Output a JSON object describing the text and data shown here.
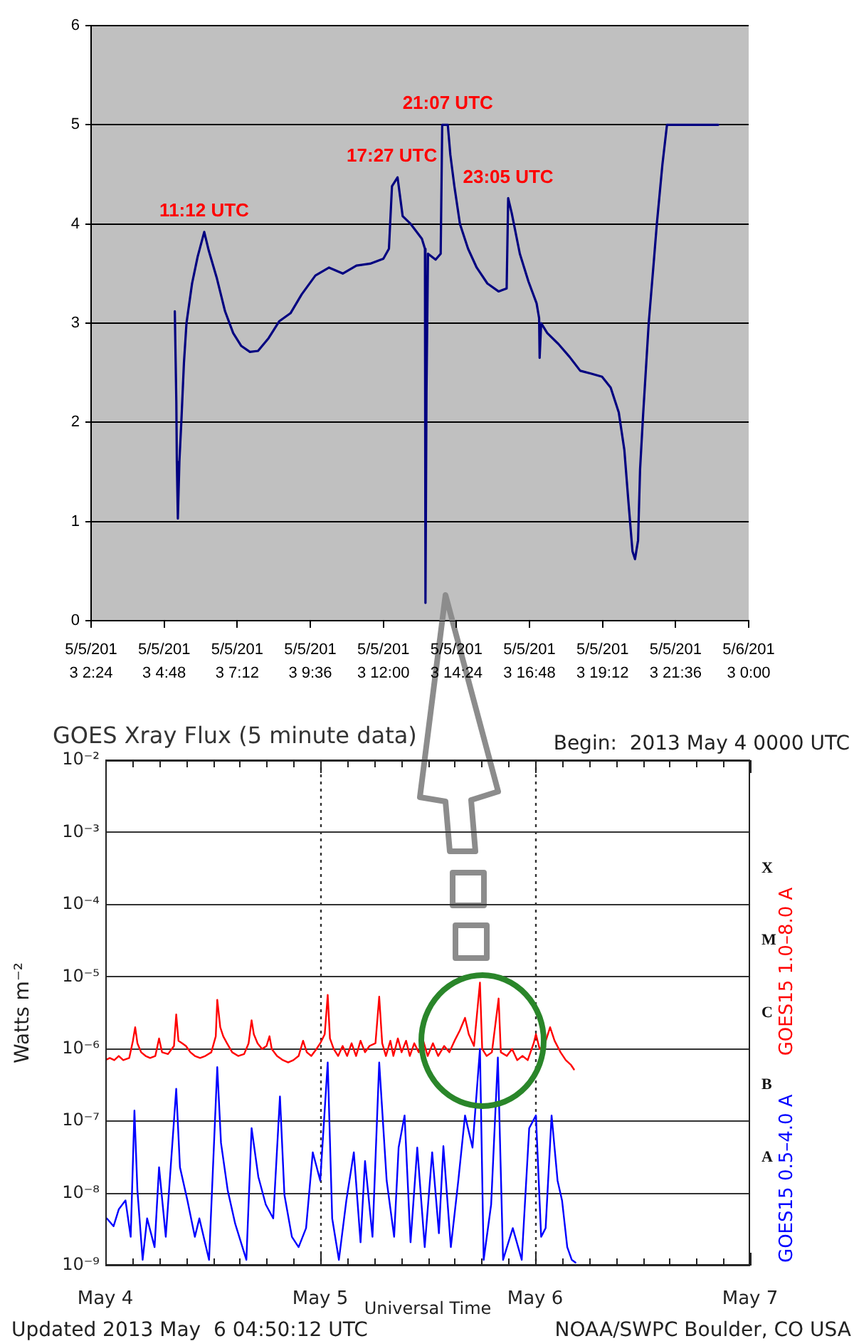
{
  "chart_data": [
    {
      "type": "line",
      "x": [
        "2013-05-05T05:09",
        "2013-05-05T05:12",
        "2013-05-05T05:13",
        "2013-05-05T05:15",
        "2013-05-05T05:18",
        "2013-05-05T05:22",
        "2013-05-05T05:27",
        "2013-05-05T05:32",
        "2013-05-05T05:43",
        "2013-05-05T05:54",
        "2013-05-05T06:07",
        "2013-05-05T06:16",
        "2013-05-05T06:32",
        "2013-05-05T06:48",
        "2013-05-05T07:04",
        "2013-05-05T07:20",
        "2013-05-05T07:37",
        "2013-05-05T07:53",
        "2013-05-05T08:14",
        "2013-05-05T08:35",
        "2013-05-05T08:57",
        "2013-05-05T09:19",
        "2013-05-05T09:46",
        "2013-05-05T10:13",
        "2013-05-05T10:40",
        "2013-05-05T11:07",
        "2013-05-05T11:34",
        "2013-05-05T12:00",
        "2013-05-05T12:11",
        "2013-05-05T12:17",
        "2013-05-05T12:28",
        "2013-05-05T12:38",
        "2013-05-05T12:54",
        "2013-05-05T13:16",
        "2013-05-05T13:22",
        "2013-05-05T13:23",
        "2013-05-05T13:25",
        "2013-05-05T13:28",
        "2013-05-05T13:43",
        "2013-05-05T13:53",
        "2013-05-05T13:56",
        "2013-05-05T14:07",
        "2013-05-05T14:12",
        "2013-05-05T14:20",
        "2013-05-05T14:31",
        "2013-05-05T14:47",
        "2013-05-05T15:04",
        "2013-05-05T15:25",
        "2013-05-05T15:47",
        "2013-05-05T16:03",
        "2013-05-05T16:06",
        "2013-05-05T16:13",
        "2013-05-05T16:29",
        "2013-05-05T16:46",
        "2013-05-05T17:02",
        "2013-05-05T17:07",
        "2013-05-05T17:08",
        "2013-05-05T17:11",
        "2013-05-05T17:23",
        "2013-05-05T17:45",
        "2013-05-05T18:07",
        "2013-05-05T18:28",
        "2013-05-05T18:50",
        "2013-05-05T19:11",
        "2013-05-05T19:28",
        "2013-05-05T19:44",
        "2013-05-05T19:55",
        "2013-05-05T20:03",
        "2013-05-05T20:11",
        "2013-05-05T20:16",
        "2013-05-05T20:22",
        "2013-05-05T20:26",
        "2013-05-05T20:32",
        "2013-05-05T20:43",
        "2013-05-05T20:53",
        "2013-05-05T20:59",
        "2013-05-05T21:10",
        "2013-05-05T21:19",
        "2013-05-05T23:00"
      ],
      "series": [
        {
          "color": "#000080",
          "values": [
            3.12,
            2.2,
            1.6,
            1.03,
            1.6,
            2.02,
            2.6,
            3.0,
            3.4,
            3.67,
            3.92,
            3.73,
            3.45,
            3.12,
            2.9,
            2.77,
            2.71,
            2.72,
            2.85,
            3.02,
            3.1,
            3.29,
            3.48,
            3.56,
            3.5,
            3.58,
            3.6,
            3.65,
            3.75,
            4.38,
            4.47,
            4.08,
            4.0,
            3.85,
            3.75,
            0.18,
            2.3,
            3.7,
            3.64,
            3.7,
            5.0,
            5.0,
            4.7,
            4.38,
            4.0,
            3.75,
            3.56,
            3.4,
            3.32,
            3.35,
            4.26,
            4.11,
            3.7,
            3.42,
            3.2,
            3.05,
            2.65,
            3.0,
            2.9,
            2.79,
            2.66,
            2.52,
            2.49,
            2.46,
            2.35,
            2.1,
            1.72,
            1.2,
            0.7,
            0.62,
            0.81,
            1.53,
            2.08,
            3.0,
            3.62,
            4.0,
            4.6,
            5.0,
            5.0
          ]
        }
      ],
      "xlim": [
        "2013-05-05T02:24",
        "2013-05-06"
      ],
      "xticks": [
        {
          "value": "2013-05-05T02:24",
          "label": "5/5/201\n3 2:24"
        },
        {
          "value": "2013-05-05T04:48",
          "label": "5/5/201\n3 4:48"
        },
        {
          "value": "2013-05-05T07:12",
          "label": "5/5/201\n3 7:12"
        },
        {
          "value": "2013-05-05T09:36",
          "label": "5/5/201\n3 9:36"
        },
        {
          "value": "2013-05-05T12:00",
          "label": "5/5/201\n3 12:00"
        },
        {
          "value": "2013-05-05T14:24",
          "label": "5/5/201\n3 14:24"
        },
        {
          "value": "2013-05-05T16:48",
          "label": "5/5/201\n3 16:48"
        },
        {
          "value": "2013-05-05T19:12",
          "label": "5/5/201\n3 19:12"
        },
        {
          "value": "2013-05-05T21:36",
          "label": "5/5/201\n3 21:36"
        },
        {
          "value": "2013-05-06",
          "label": "5/6/201\n3 0:00"
        }
      ],
      "ylim": [
        0,
        6
      ],
      "yticks": [
        0,
        1,
        2,
        3,
        4,
        5,
        6
      ],
      "grid": "y",
      "annotations": [
        {
          "text": "11:12 UTC",
          "x": "2013-05-05T06:07",
          "y": 3.92
        },
        {
          "text": "17:27 UTC",
          "x": "2013-05-05T12:28",
          "y": 4.47
        },
        {
          "text": "21:07 UTC",
          "x": "2013-05-05T14:07",
          "y": 5.0
        },
        {
          "text": "23:05 UTC",
          "x": "2013-05-05T16:06",
          "y": 4.26
        }
      ]
    },
    {
      "type": "line",
      "title": "GOES Xray Flux (5 minute data)",
      "subtitle": "Begin:  2013 May 4 0000 UTC",
      "xlabel": "Universal Time",
      "ylabel": "Watts m⁻²",
      "series": [
        {
          "name": "GOES15 1.0–8.0 A",
          "color": "#ff0000",
          "x": [
            "2013-05-04T00:00",
            "2013-05-04T00:30",
            "2013-05-04T01:00",
            "2013-05-04T01:30",
            "2013-05-04T02:00",
            "2013-05-04T02:40",
            "2013-05-04T03:05",
            "2013-05-04T03:20",
            "2013-05-04T03:35",
            "2013-05-04T04:00",
            "2013-05-04T04:30",
            "2013-05-04T05:00",
            "2013-05-04T05:35",
            "2013-05-04T06:00",
            "2013-05-04T06:20",
            "2013-05-04T07:00",
            "2013-05-04T07:40",
            "2013-05-04T07:55",
            "2013-05-04T08:10",
            "2013-05-04T08:35",
            "2013-05-04T09:00",
            "2013-05-04T09:30",
            "2013-05-04T10:00",
            "2013-05-04T10:35",
            "2013-05-04T11:10",
            "2013-05-04T11:50",
            "2013-05-04T12:20",
            "2013-05-04T12:30",
            "2013-05-04T12:50",
            "2013-05-04T13:10",
            "2013-05-04T13:35",
            "2013-05-04T14:10",
            "2013-05-04T14:50",
            "2013-05-04T15:30",
            "2013-05-04T16:00",
            "2013-05-04T16:20",
            "2013-05-04T16:35",
            "2013-05-04T17:00",
            "2013-05-04T17:30",
            "2013-05-04T18:00",
            "2013-05-04T18:20",
            "2013-05-04T18:35",
            "2013-05-04T19:10",
            "2013-05-04T19:50",
            "2013-05-04T20:25",
            "2013-05-04T21:00",
            "2013-05-04T21:35",
            "2013-05-04T22:05",
            "2013-05-04T22:30",
            "2013-05-04T23:00",
            "2013-05-04T23:35",
            "2013-05-05T00:00",
            "2013-05-05T00:30",
            "2013-05-05T00:50",
            "2013-05-05T01:05",
            "2013-05-05T01:30",
            "2013-05-05T02:00",
            "2013-05-05T02:30",
            "2013-05-05T03:00",
            "2013-05-05T03:30",
            "2013-05-05T04:00",
            "2013-05-05T04:30",
            "2013-05-05T05:00",
            "2013-05-05T05:30",
            "2013-05-05T06:10",
            "2013-05-05T06:35",
            "2013-05-05T06:55",
            "2013-05-05T07:20",
            "2013-05-05T07:50",
            "2013-05-05T08:10",
            "2013-05-05T08:40",
            "2013-05-05T09:05",
            "2013-05-05T09:35",
            "2013-05-05T10:00",
            "2013-05-05T10:30",
            "2013-05-05T11:00",
            "2013-05-05T11:30",
            "2013-05-05T12:00",
            "2013-05-05T12:35",
            "2013-05-05T13:10",
            "2013-05-05T13:50",
            "2013-05-05T14:25",
            "2013-05-05T15:00",
            "2013-05-05T15:35",
            "2013-05-05T16:10",
            "2013-05-05T16:35",
            "2013-05-05T17:10",
            "2013-05-05T17:50",
            "2013-05-05T18:05",
            "2013-05-05T18:35",
            "2013-05-05T19:10",
            "2013-05-05T19:55",
            "2013-05-05T20:10",
            "2013-05-05T20:50",
            "2013-05-05T21:25",
            "2013-05-05T22:00",
            "2013-05-05T22:35",
            "2013-05-05T23:10",
            "2013-05-05T23:50",
            "2013-05-06T00:05",
            "2013-05-06T00:30",
            "2013-05-06T01:00",
            "2013-05-06T01:40",
            "2013-05-06T02:10",
            "2013-05-06T02:50",
            "2013-05-06T03:25",
            "2013-05-06T04:00",
            "2013-05-06T04:20"
          ],
          "values": [
            7e-07,
            7.5e-07,
            7e-07,
            8e-07,
            7e-07,
            7.5e-07,
            1.3e-06,
            2e-06,
            1.2e-06,
            9e-07,
            8e-07,
            7.5e-07,
            8e-07,
            1.4e-06,
            9e-07,
            8.5e-07,
            1.1e-06,
            3e-06,
            1.3e-06,
            1.2e-06,
            1.1e-06,
            9e-07,
            8e-07,
            7.5e-07,
            8e-07,
            9e-07,
            1.5e-06,
            4.8e-06,
            2e-06,
            1.5e-06,
            1.2e-06,
            9e-07,
            8e-07,
            8.5e-07,
            1.2e-06,
            2.5e-06,
            1.6e-06,
            1.2e-06,
            1e-06,
            1.1e-06,
            1.5e-06,
            1e-06,
            8e-07,
            7e-07,
            6.5e-07,
            7e-07,
            8e-07,
            1.3e-06,
            9e-07,
            8e-07,
            1e-06,
            1.2e-06,
            1.6e-06,
            5.6e-06,
            1.4e-06,
            1e-06,
            8e-07,
            1.1e-06,
            8e-07,
            1.2e-06,
            8e-07,
            1.3e-06,
            9e-07,
            1.1e-06,
            1.2e-06,
            5.3e-06,
            1.2e-06,
            8e-07,
            1.3e-06,
            8e-07,
            1.4e-06,
            9e-07,
            1.3e-06,
            8e-07,
            1.2e-06,
            9e-07,
            1.3e-06,
            8e-07,
            1.2e-06,
            8e-07,
            1.1e-06,
            9e-07,
            1.3e-06,
            1.8e-06,
            2.7e-06,
            1.6e-06,
            1.1e-06,
            8.3e-06,
            1e-06,
            8e-07,
            9e-07,
            5e-06,
            9e-07,
            8e-07,
            1e-06,
            7e-07,
            8e-07,
            7e-07,
            1.2e-06,
            1.6e-06,
            1e-06,
            1.1e-06,
            2e-06,
            1.3e-06,
            9e-07,
            7e-07,
            6e-07,
            5.2e-07
          ]
        },
        {
          "name": "GOES15 0.5–4.0 A",
          "color": "#0000ff",
          "x": [
            "2013-05-04T00:10",
            "2013-05-04T00:55",
            "2013-05-04T01:30",
            "2013-05-04T02:15",
            "2013-05-04T02:50",
            "2013-05-04T03:15",
            "2013-05-04T03:35",
            "2013-05-04T04:10",
            "2013-05-04T04:40",
            "2013-05-04T05:30",
            "2013-05-04T06:00",
            "2013-05-04T06:45",
            "2013-05-04T07:55",
            "2013-05-04T08:20",
            "2013-05-04T09:10",
            "2013-05-04T10:00",
            "2013-05-04T10:30",
            "2013-05-04T11:35",
            "2013-05-04T12:30",
            "2013-05-04T12:55",
            "2013-05-04T13:40",
            "2013-05-04T14:30",
            "2013-05-04T15:45",
            "2013-05-04T16:20",
            "2013-05-04T17:05",
            "2013-05-04T17:55",
            "2013-05-04T18:45",
            "2013-05-04T19:30",
            "2013-05-04T20:00",
            "2013-05-04T20:50",
            "2013-05-04T21:35",
            "2013-05-04T22:25",
            "2013-05-04T23:10",
            "2013-05-05T00:00",
            "2013-05-05T00:50",
            "2013-05-05T01:20",
            "2013-05-05T02:05",
            "2013-05-05T02:55",
            "2013-05-05T03:45",
            "2013-05-05T04:30",
            "2013-05-05T05:00",
            "2013-05-05T05:50",
            "2013-05-05T06:35",
            "2013-05-05T07:25",
            "2013-05-05T08:15",
            "2013-05-05T08:45",
            "2013-05-05T09:25",
            "2013-05-05T10:05",
            "2013-05-05T10:50",
            "2013-05-05T11:40",
            "2013-05-05T12:30",
            "2013-05-05T13:15",
            "2013-05-05T13:45",
            "2013-05-05T14:35",
            "2013-05-05T15:25",
            "2013-05-05T16:10",
            "2013-05-05T17:00",
            "2013-05-05T17:50",
            "2013-05-05T18:15",
            "2013-05-05T19:05",
            "2013-05-05T19:50",
            "2013-05-05T20:25",
            "2013-05-05T21:30",
            "2013-05-05T22:30",
            "2013-05-05T23:20",
            "2013-05-06T00:05",
            "2013-05-06T00:40",
            "2013-05-06T01:10",
            "2013-05-06T01:50",
            "2013-05-06T02:30",
            "2013-05-06T03:00",
            "2013-05-06T03:35",
            "2013-05-06T04:05",
            "2013-05-06T04:30"
          ],
          "values": [
            4.5e-09,
            3.5e-09,
            6e-09,
            8e-09,
            2.5e-09,
            1.4e-07,
            1.1e-08,
            1.2e-09,
            4.5e-09,
            1.8e-09,
            2.3e-08,
            2.5e-09,
            2.8e-07,
            2.3e-08,
            8e-09,
            2.5e-09,
            4.5e-09,
            1.2e-09,
            5.6e-07,
            5e-08,
            1.1e-08,
            3.8e-09,
            1.2e-09,
            8e-08,
            1.7e-08,
            7e-09,
            4.5e-09,
            2.2e-07,
            9.5e-09,
            2.5e-09,
            1.8e-09,
            3.3e-09,
            3.7e-08,
            1.5e-08,
            6.5e-07,
            4.5e-09,
            1.2e-09,
            8e-09,
            3.7e-08,
            2.1e-09,
            2.8e-08,
            2.5e-09,
            6.5e-07,
            1.5e-08,
            2.5e-09,
            4.3e-08,
            1.2e-07,
            2.1e-09,
            4.3e-08,
            1.8e-09,
            3.7e-08,
            2.8e-09,
            4.5e-08,
            1.8e-09,
            1.5e-08,
            1.2e-07,
            4.3e-08,
            1e-06,
            1.2e-09,
            7e-09,
            7.6e-07,
            1.2e-09,
            3.3e-09,
            1.2e-09,
            8e-08,
            1.2e-07,
            2.5e-09,
            3.3e-09,
            1.2e-07,
            1.5e-08,
            8e-09,
            1.8e-09,
            1.2e-09,
            1.1e-09
          ]
        }
      ],
      "xlim": [
        "2013-05-04",
        "2013-05-07"
      ],
      "xticks": [
        {
          "value": "2013-05-04",
          "label": "May 4"
        },
        {
          "value": "2013-05-04T03:00",
          "label": null
        },
        {
          "value": "2013-05-04T06:00",
          "label": null
        },
        {
          "value": "2013-05-04T09:00",
          "label": null
        },
        {
          "value": "2013-05-04T12:00",
          "label": null
        },
        {
          "value": "2013-05-04T15:00",
          "label": null
        },
        {
          "value": "2013-05-04T18:00",
          "label": null
        },
        {
          "value": "2013-05-04T21:00",
          "label": null
        },
        {
          "value": "2013-05-05",
          "label": "May 5"
        },
        {
          "value": "2013-05-05T03:00",
          "label": null
        },
        {
          "value": "2013-05-05T06:00",
          "label": null
        },
        {
          "value": "2013-05-05T09:00",
          "label": null
        },
        {
          "value": "2013-05-05T12:00",
          "label": null
        },
        {
          "value": "2013-05-05T15:00",
          "label": null
        },
        {
          "value": "2013-05-05T18:00",
          "label": null
        },
        {
          "value": "2013-05-05T21:00",
          "label": null
        },
        {
          "value": "2013-05-06",
          "label": "May 6"
        },
        {
          "value": "2013-05-06T03:00",
          "label": null
        },
        {
          "value": "2013-05-06T06:00",
          "label": null
        },
        {
          "value": "2013-05-06T09:00",
          "label": null
        },
        {
          "value": "2013-05-06T12:00",
          "label": null
        },
        {
          "value": "2013-05-06T15:00",
          "label": null
        },
        {
          "value": "2013-05-06T18:00",
          "label": null
        },
        {
          "value": "2013-05-06T21:00",
          "label": null
        },
        {
          "value": "2013-05-07",
          "label": "May 7"
        }
      ],
      "ylim": [
        1e-09,
        0.01
      ],
      "yticks": [
        {
          "value": 1e-09,
          "label": "10⁻⁹"
        },
        {
          "value": 1e-08,
          "label": "10⁻⁸"
        },
        {
          "value": 1e-07,
          "label": "10⁻⁷"
        },
        {
          "value": 1e-06,
          "label": "10⁻⁶"
        },
        {
          "value": 1e-05,
          "label": "10⁻⁵"
        },
        {
          "value": 0.0001,
          "label": "10⁻⁴"
        },
        {
          "value": 0.001,
          "label": "10⁻³"
        },
        {
          "value": 0.01,
          "label": "10⁻²"
        }
      ],
      "log": "y",
      "grid": true,
      "legend": "right",
      "annotations": [
        "X",
        "M",
        "C",
        "B",
        "A",
        "Updated 2013 May  6 04:50:12 UTC",
        "NOAA/SWPC Boulder, CO USA"
      ]
    }
  ]
}
